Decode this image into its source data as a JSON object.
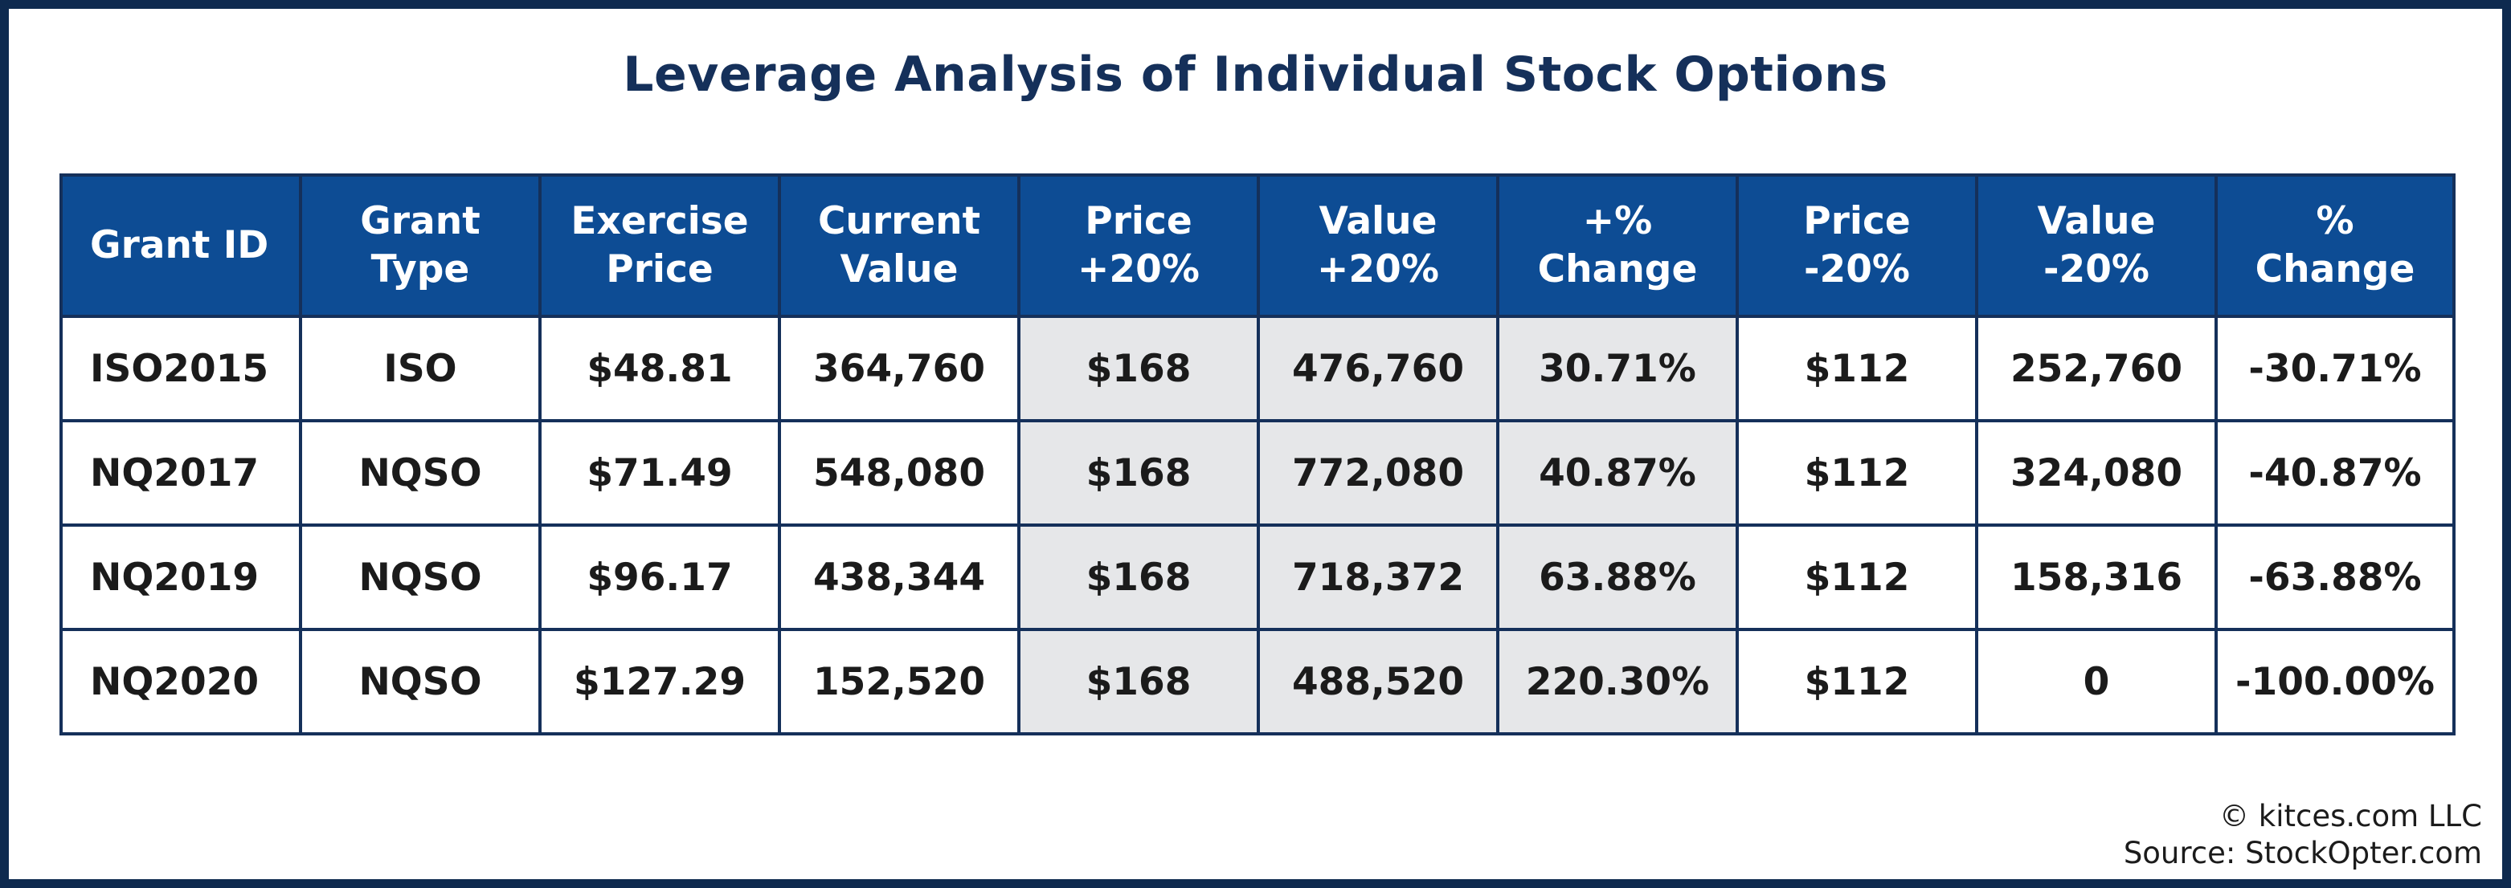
{
  "title": "Leverage Analysis of Individual Stock Options",
  "table": {
    "headers": [
      "Grant ID",
      "Grant\nType",
      "Exercise\nPrice",
      "Current\nValue",
      "Price\n+20%",
      "Value\n+20%",
      "+%\nChange",
      "Price\n-20%",
      "Value\n-20%",
      "%\nChange"
    ],
    "rows": [
      [
        "ISO2015",
        "ISO",
        "$48.81",
        "364,760",
        "$168",
        "476,760",
        "30.71%",
        "$112",
        "252,760",
        "-30.71%"
      ],
      [
        "NQ2017",
        "NQSO",
        "$71.49",
        "548,080",
        "$168",
        "772,080",
        "40.87%",
        "$112",
        "324,080",
        "-40.87%"
      ],
      [
        "NQ2019",
        "NQSO",
        "$96.17",
        "438,344",
        "$168",
        "718,372",
        "63.88%",
        "$112",
        "158,316",
        "-63.88%"
      ],
      [
        "NQ2020",
        "NQSO",
        "$127.29",
        "152,520",
        "$168",
        "488,520",
        "220.30%",
        "$112",
        "0",
        "-100.00%"
      ]
    ],
    "shaded_columns": [
      4,
      5,
      6
    ]
  },
  "credits": {
    "copyright": "© kitces.com LLC",
    "source": "Source: StockOpter.com"
  },
  "colors": {
    "frame": "#0e2a4f",
    "title": "#15305a",
    "header_bg": "#0d4c94",
    "header_text": "#ffffff",
    "shaded_cell": "#e6e7e9",
    "grid_line": "#15305a"
  }
}
